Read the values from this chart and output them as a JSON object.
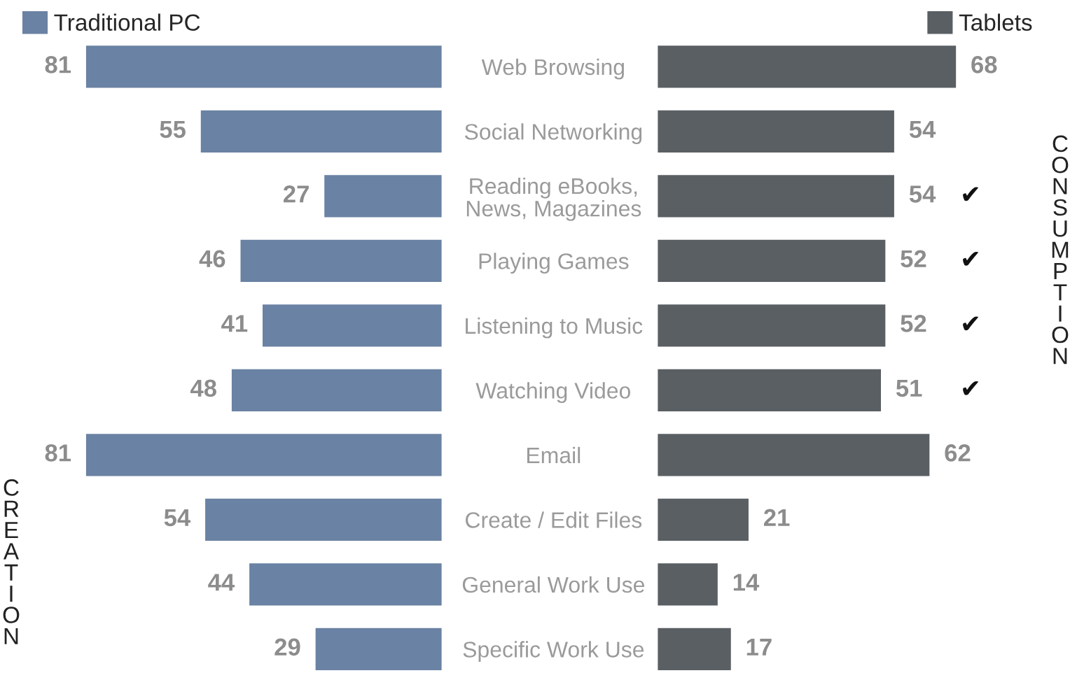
{
  "chart_data": [
    {
      "type": "bar",
      "orientation": "horizontal",
      "categories": [
        "Web Browsing",
        "Social Networking",
        "Reading eBooks,\nNews, Magazines",
        "Playing Games",
        "Listening to Music",
        "Watching Video",
        "Email",
        "Create / Edit Files",
        "General Work Use",
        "Specific Work Use"
      ],
      "series": [
        {
          "name": "Traditional PC",
          "color": "#6a82a3",
          "values": [
            81,
            55,
            27,
            46,
            41,
            48,
            81,
            54,
            44,
            29
          ]
        }
      ],
      "data_labels": true,
      "tick_labels": "y",
      "legend": "top left",
      "annotations": [
        "CREATION"
      ]
    },
    {
      "type": "bar",
      "orientation": "horizontal",
      "categories": [
        null,
        null,
        null,
        null,
        null,
        null,
        null,
        null,
        null,
        null
      ],
      "series": [
        {
          "name": "Tablets",
          "color": "#5a5f63",
          "values": [
            68,
            54,
            54,
            52,
            52,
            51,
            62,
            21,
            14,
            17
          ]
        }
      ],
      "data_labels": true,
      "legend": "top right",
      "annotations": [
        "✔",
        "✔",
        "✔",
        "✔",
        "CONSUMPTION"
      ]
    }
  ]
}
